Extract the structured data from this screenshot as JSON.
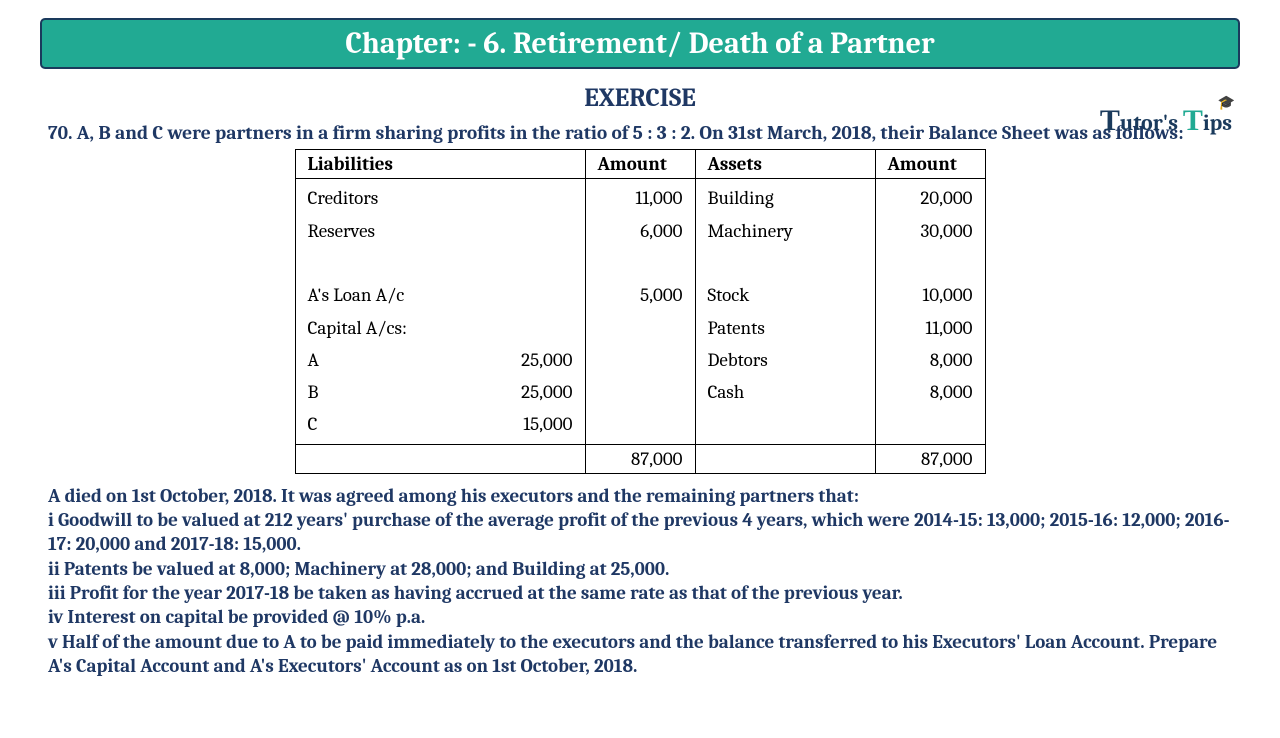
{
  "chapter_title": "Chapter: - 6. Retirement/ Death  of a Partner",
  "exercise_label": "EXERCISE",
  "logo": {
    "t1": "T",
    "rest1": "utor's ",
    "t2": "T",
    "rest2": "ips",
    "hat": "🎓"
  },
  "question_intro": "70. A, B and C were partners in a firm sharing profits in the ratio of 5 : 3 : 2. On 31st March, 2018, their Balance Sheet was as follows:",
  "headers": {
    "liabilities": "Liabilities",
    "amount1": "Amount",
    "assets": "Assets",
    "amount2": "Amount"
  },
  "liab": {
    "creditors": "Creditors",
    "creditors_amt": "11,000",
    "reserves": "Reserves",
    "reserves_amt": "6,000",
    "loan": "A's Loan A/c",
    "loan_amt": "5,000",
    "capital_hdr": "Capital A/cs:",
    "a": "A",
    "a_val": "25,000",
    "b": "B",
    "b_val": "25,000",
    "c": "C",
    "c_val": "15,000"
  },
  "assets": {
    "building": "Building",
    "building_amt": "20,000",
    "machinery": "Machinery",
    "machinery_amt": "30,000",
    "stock": "Stock",
    "stock_amt": "10,000",
    "patents": "Patents",
    "patents_amt": "11,000",
    "debtors": "Debtors",
    "debtors_amt": "8,000",
    "cash": "Cash",
    "cash_amt": "8,000"
  },
  "totals": {
    "left": "87,000",
    "right": "87,000"
  },
  "notes": {
    "l0": "A died on 1st October, 2018. It was agreed among his executors and the remaining partners that:",
    "l1": "i Goodwill to be valued at 212 years' purchase of the average profit of the previous 4 years, which were 2014-15: 13,000; 2015-16: 12,000; 2016-17: 20,000 and 2017-18: 15,000.",
    "l2": "ii Patents be valued at 8,000; Machinery at 28,000; and Building at 25,000.",
    "l3": "iii Profit for the year 2017-18 be taken as having accrued at the same rate as that of the previous year.",
    "l4": "iv Interest on capital be provided @ 10% p.a.",
    "l5": "v Half of the amount due to A to be paid immediately to the executors and the balance transferred to his Executors' Loan Account. Prepare A's Capital Account and A's Executors' Account as on 1st October, 2018."
  },
  "colors": {
    "header_bg": "#21aa93",
    "header_border": "#1a3a5c",
    "text_navy": "#1f3864",
    "table_border": "#000000"
  }
}
